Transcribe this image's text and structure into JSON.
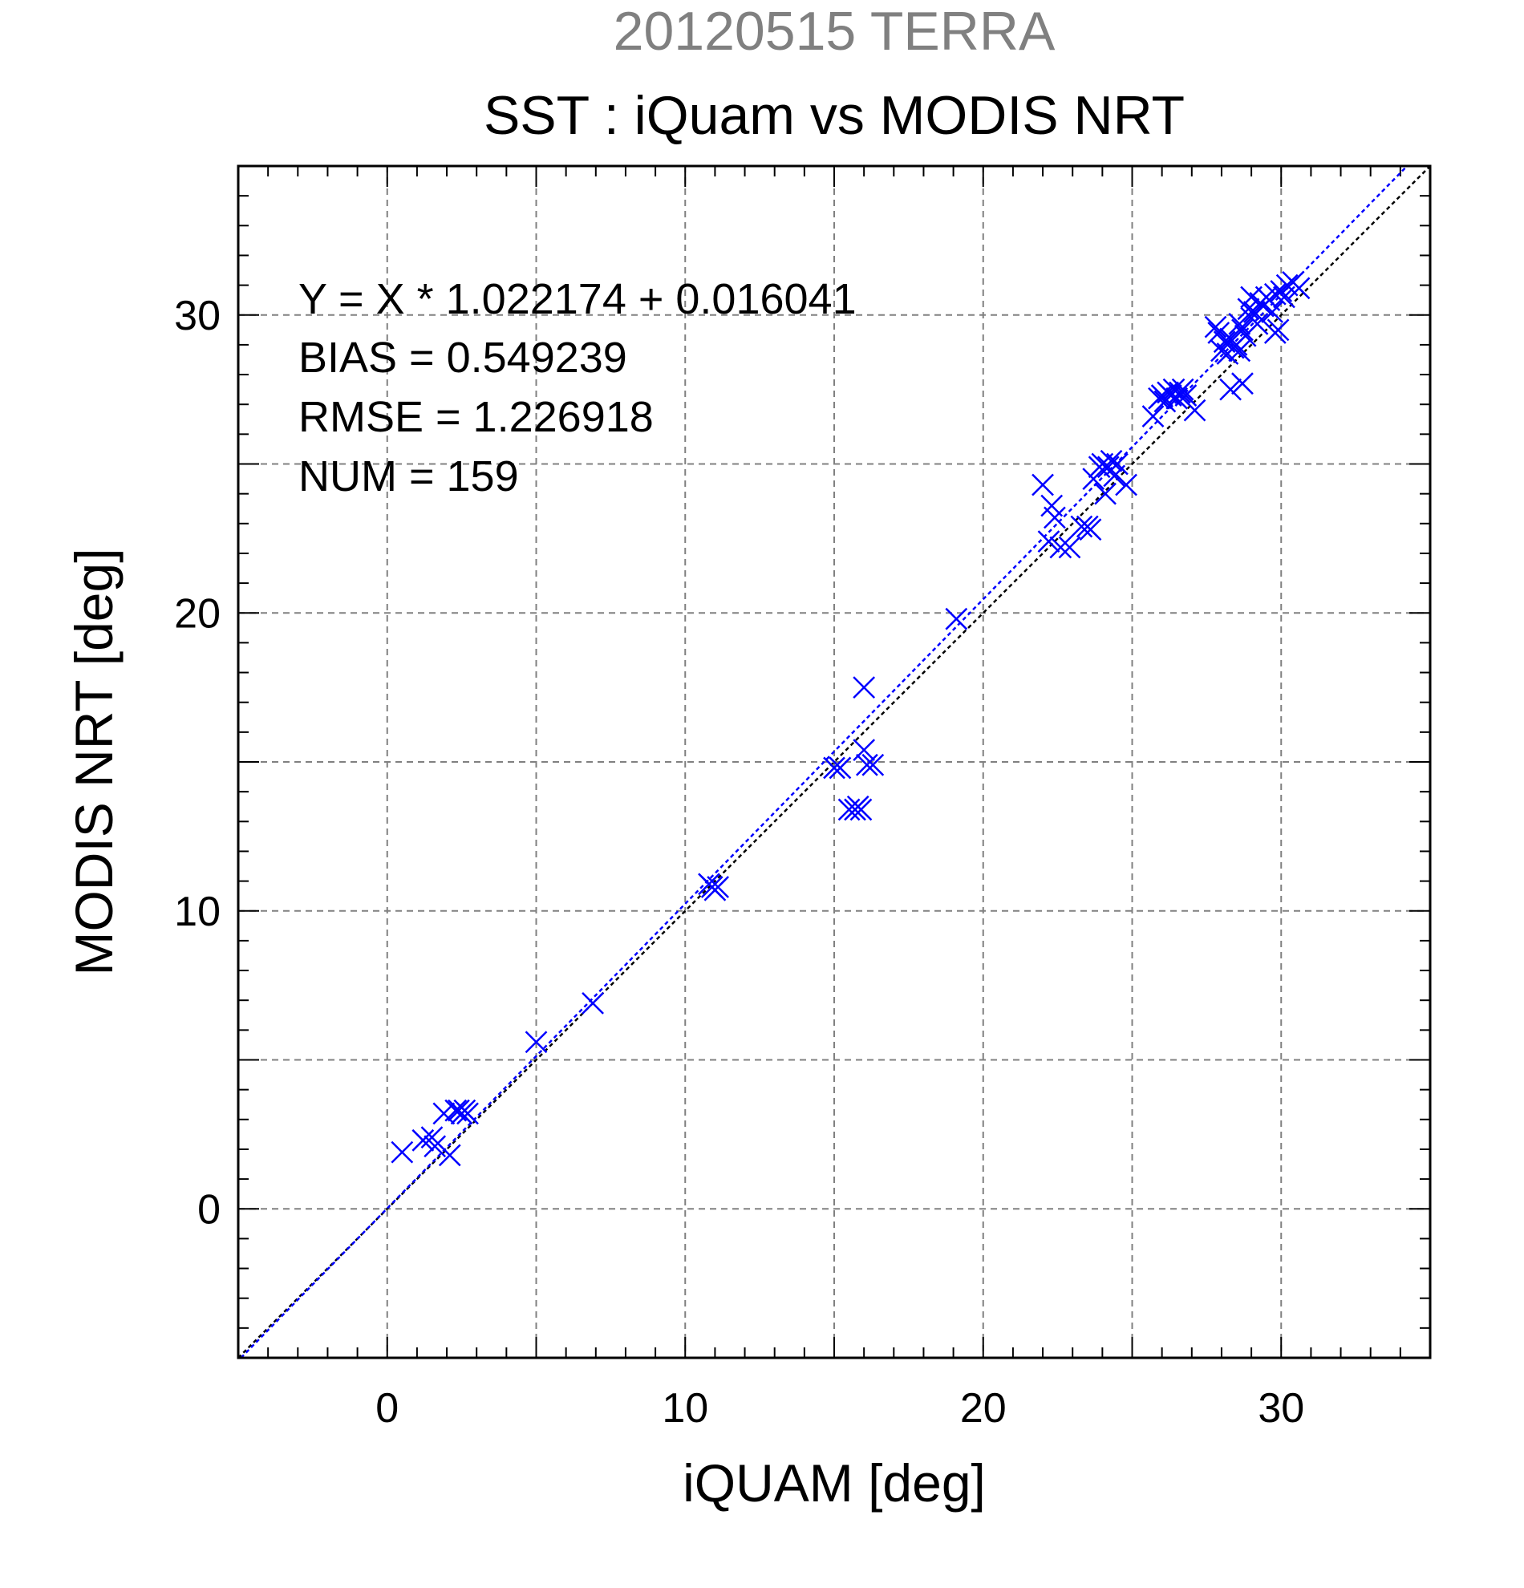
{
  "chart_data": {
    "type": "scatter",
    "suptitle": "20120515 TERRA",
    "title": "SST : iQuam vs MODIS NRT",
    "xlabel": "iQUAM [deg]",
    "ylabel": "MODIS NRT [deg]",
    "xlim": [
      -5,
      35
    ],
    "ylim": [
      -5,
      35
    ],
    "xticks": [
      0,
      10,
      20,
      30
    ],
    "yticks": [
      0,
      10,
      20,
      30
    ],
    "grid": true,
    "annotations": [
      "Y = X * 1.022174 + 0.016041",
      "BIAS = 0.549239",
      "RMSE = 1.226918",
      "NUM = 159"
    ],
    "fit_line": {
      "slope": 1.022174,
      "intercept": 0.016041,
      "color": "#0000ff"
    },
    "identity_line": {
      "slope": 1,
      "intercept": 0,
      "color": "#000000"
    },
    "colors": {
      "points": "#0000ff",
      "suptitle": "#808080",
      "grid": "#808080"
    },
    "points": [
      [
        0.5,
        1.9
      ],
      [
        1.2,
        2.3
      ],
      [
        1.5,
        2.4
      ],
      [
        1.6,
        2.1
      ],
      [
        1.9,
        3.2
      ],
      [
        2.1,
        1.8
      ],
      [
        2.3,
        3.3
      ],
      [
        2.4,
        3.3
      ],
      [
        2.5,
        3.2
      ],
      [
        2.6,
        3.3
      ],
      [
        2.7,
        3.2
      ],
      [
        5.0,
        5.6
      ],
      [
        6.9,
        6.9
      ],
      [
        10.8,
        10.9
      ],
      [
        10.9,
        10.8
      ],
      [
        11.0,
        10.7
      ],
      [
        11.1,
        10.8
      ],
      [
        15.0,
        14.8
      ],
      [
        15.2,
        14.8
      ],
      [
        15.5,
        13.4
      ],
      [
        15.7,
        13.4
      ],
      [
        15.8,
        13.5
      ],
      [
        15.9,
        13.4
      ],
      [
        16.0,
        17.5
      ],
      [
        16.0,
        15.4
      ],
      [
        16.1,
        14.9
      ],
      [
        16.3,
        14.9
      ],
      [
        19.1,
        19.8
      ],
      [
        22.0,
        24.3
      ],
      [
        22.2,
        22.4
      ],
      [
        22.3,
        23.6
      ],
      [
        22.4,
        23.2
      ],
      [
        22.6,
        22.2
      ],
      [
        22.9,
        22.2
      ],
      [
        23.3,
        22.9
      ],
      [
        23.5,
        22.9
      ],
      [
        23.6,
        22.8
      ],
      [
        23.7,
        24.5
      ],
      [
        23.9,
        24.9
      ],
      [
        24.0,
        25.0
      ],
      [
        24.1,
        24.0
      ],
      [
        24.2,
        24.9
      ],
      [
        24.3,
        25.1
      ],
      [
        24.4,
        24.6
      ],
      [
        24.5,
        25.0
      ],
      [
        24.8,
        24.3
      ],
      [
        25.7,
        26.6
      ],
      [
        25.9,
        27.2
      ],
      [
        26.0,
        27.3
      ],
      [
        26.1,
        27.1
      ],
      [
        26.2,
        27.4
      ],
      [
        26.3,
        27.3
      ],
      [
        26.4,
        27.5
      ],
      [
        26.5,
        27.2
      ],
      [
        26.6,
        27.4
      ],
      [
        26.7,
        27.5
      ],
      [
        26.8,
        27.3
      ],
      [
        27.1,
        26.8
      ],
      [
        27.8,
        29.6
      ],
      [
        27.9,
        29.4
      ],
      [
        28.0,
        28.8
      ],
      [
        28.1,
        29.1
      ],
      [
        28.2,
        28.7
      ],
      [
        28.3,
        27.5
      ],
      [
        28.3,
        29.2
      ],
      [
        28.4,
        28.9
      ],
      [
        28.5,
        29.0
      ],
      [
        28.6,
        28.8
      ],
      [
        28.6,
        29.7
      ],
      [
        28.7,
        29.5
      ],
      [
        28.7,
        27.7
      ],
      [
        28.8,
        29.3
      ],
      [
        28.9,
        30.2
      ],
      [
        29.0,
        29.9
      ],
      [
        29.0,
        30.6
      ],
      [
        29.1,
        30.1
      ],
      [
        29.2,
        29.7
      ],
      [
        29.3,
        30.4
      ],
      [
        29.4,
        30.3
      ],
      [
        29.5,
        30.6
      ],
      [
        29.6,
        30.5
      ],
      [
        29.7,
        30.1
      ],
      [
        29.8,
        29.4
      ],
      [
        29.8,
        30.7
      ],
      [
        29.9,
        29.5
      ],
      [
        30.0,
        30.8
      ],
      [
        30.1,
        30.6
      ],
      [
        30.2,
        31.0
      ],
      [
        30.4,
        31.1
      ],
      [
        30.6,
        30.9
      ]
    ]
  }
}
